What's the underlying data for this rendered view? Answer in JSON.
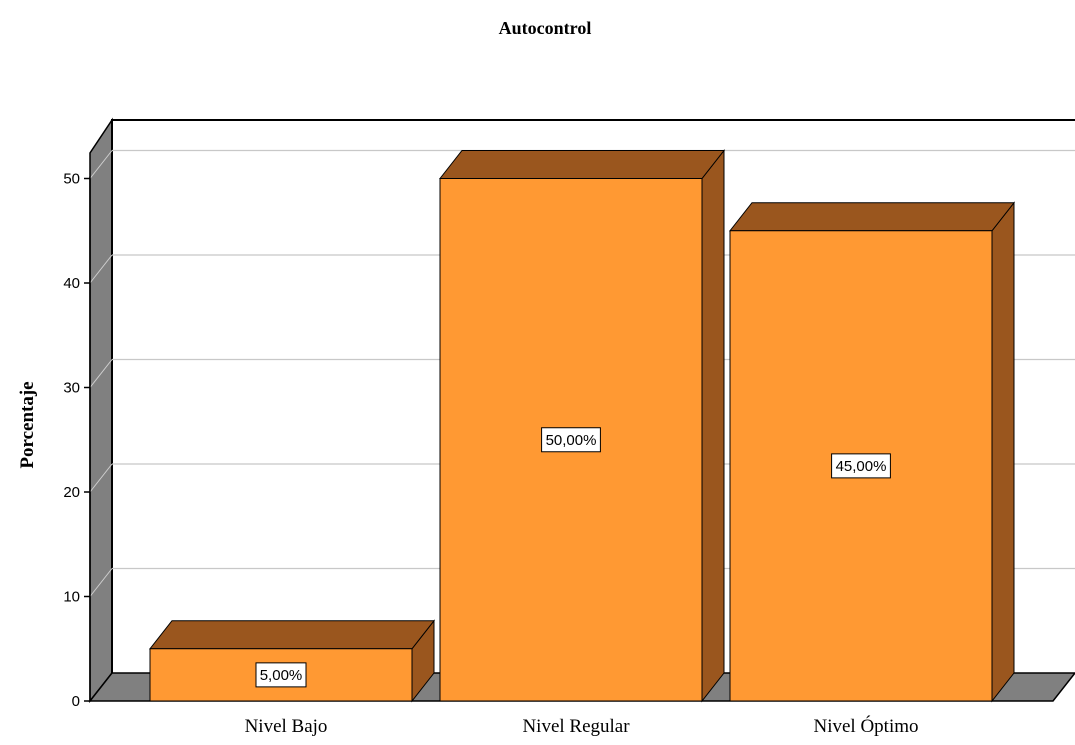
{
  "chart_data": {
    "type": "bar",
    "title": "Autocontrol",
    "ylabel": "Porcentaje",
    "xlabel": "",
    "categories": [
      "Nivel Bajo",
      "Nivel Regular",
      "Nivel Óptimo"
    ],
    "values": [
      5,
      50,
      45
    ],
    "data_labels": [
      "5,00%",
      "50,00%",
      "45,00%"
    ],
    "ylim": [
      0,
      50
    ],
    "yticks": [
      "0",
      "10",
      "20",
      "30",
      "40",
      "50"
    ],
    "grid": true,
    "style": "3d-bar",
    "colors": {
      "bar_front": "#FF9933",
      "bar_top": "#9A561E",
      "bar_side": "#9A561E",
      "wall": "#808080",
      "floor": "#808080",
      "grid": "#c8c8c8"
    }
  }
}
